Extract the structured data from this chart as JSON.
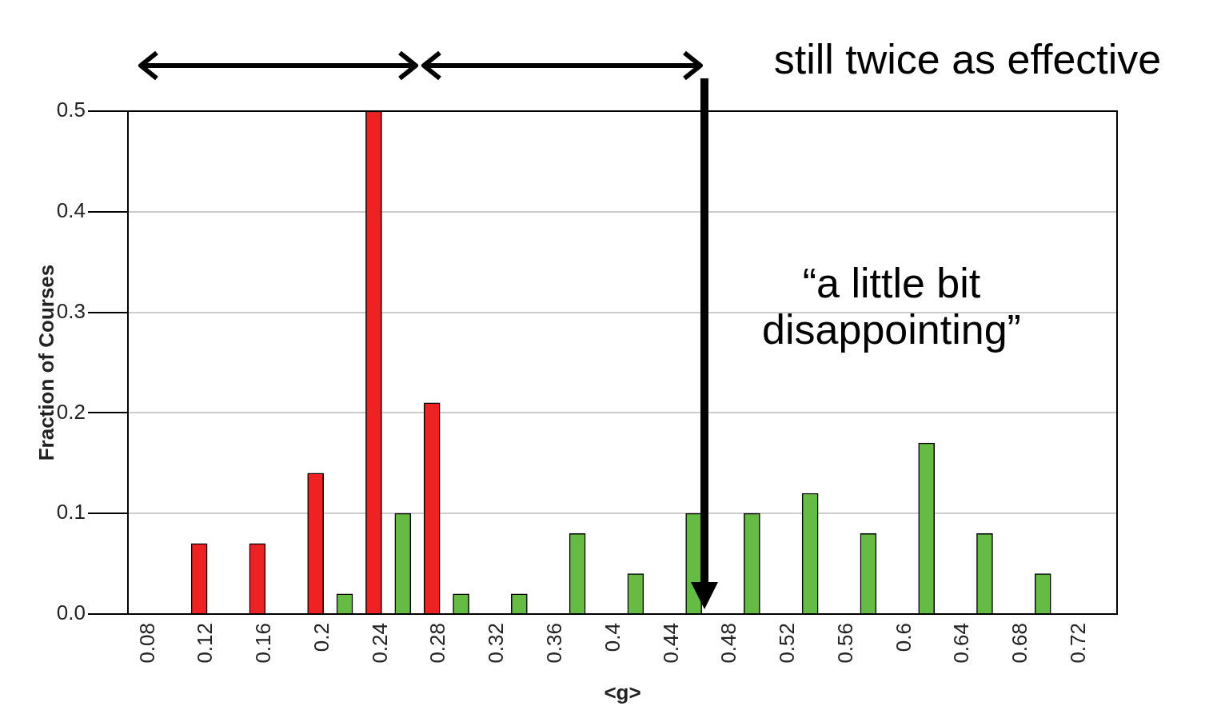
{
  "chart_data": {
    "type": "bar",
    "xlabel": "<g>",
    "ylabel": "Fraction of Courses",
    "annotations": [
      "still twice as effective",
      "“a little bit disappointing”"
    ],
    "series": [
      {
        "color": "#ee2222",
        "x": [
          0.115,
          0.155,
          0.195,
          0.235,
          0.275
        ],
        "values": [
          0.07,
          0.07,
          0.14,
          0.5,
          0.21
        ]
      },
      {
        "color": "#66bb44",
        "x": [
          0.215,
          0.255,
          0.295,
          0.335,
          0.375,
          0.415,
          0.455,
          0.495,
          0.535,
          0.575,
          0.615,
          0.655,
          0.695
        ],
        "values": [
          0.02,
          0.1,
          0.02,
          0.02,
          0.08,
          0.04,
          0.1,
          0.1,
          0.12,
          0.08,
          0.17,
          0.08,
          0.04
        ]
      }
    ],
    "xlim": [
      0.066,
      0.746
    ],
    "xticks": [
      0.08,
      0.12,
      0.16,
      0.2,
      0.24,
      0.28,
      0.32,
      0.36,
      0.4,
      0.44,
      0.48,
      0.52,
      0.56,
      0.6,
      0.64,
      0.68,
      0.72
    ],
    "ylim": [
      0,
      0.5
    ],
    "yticks": [
      {
        "value": 0,
        "label": "0.0"
      },
      {
        "value": 0.1,
        "label": "0.1"
      },
      {
        "value": 0.2,
        "label": "0.2"
      },
      {
        "value": 0.3,
        "label": "0.3"
      },
      {
        "value": 0.4,
        "label": "0.4"
      },
      {
        "value": 0.5,
        "label": "0.5"
      }
    ],
    "grid": "y"
  }
}
